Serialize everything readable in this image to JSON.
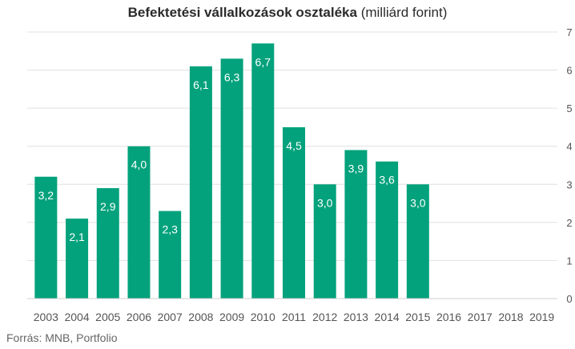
{
  "chart_data": {
    "type": "bar",
    "title": "Befektetési vállalkozások osztaléka",
    "subtitle": "(milliárd forint)",
    "categories": [
      "2003",
      "2004",
      "2005",
      "2006",
      "2007",
      "2008",
      "2009",
      "2010",
      "2011",
      "2012",
      "2013",
      "2014",
      "2015",
      "2016",
      "2017",
      "2018",
      "2019"
    ],
    "values": [
      3.2,
      2.1,
      2.9,
      4.0,
      2.3,
      6.1,
      6.3,
      6.7,
      4.5,
      3.0,
      3.9,
      3.6,
      3.0,
      null,
      null,
      null,
      null
    ],
    "data_labels": [
      "3,2",
      "2,1",
      "2,9",
      "4,0",
      "2,3",
      "6,1",
      "6,3",
      "6,7",
      "4,5",
      "3,0",
      "3,9",
      "3,6",
      "3,0",
      "",
      "",
      "",
      ""
    ],
    "yticks": [
      "0",
      "1",
      "2",
      "3",
      "4",
      "5",
      "6",
      "7"
    ],
    "ylim": [
      0,
      7
    ],
    "xlabel": "",
    "ylabel": "",
    "grid": true,
    "y_axis_side": "right",
    "bar_color": "#03a27c",
    "label_color": "#ffffff",
    "grid_color": "#e0e0e0",
    "source": "Forrás: MNB, Portfolio"
  }
}
